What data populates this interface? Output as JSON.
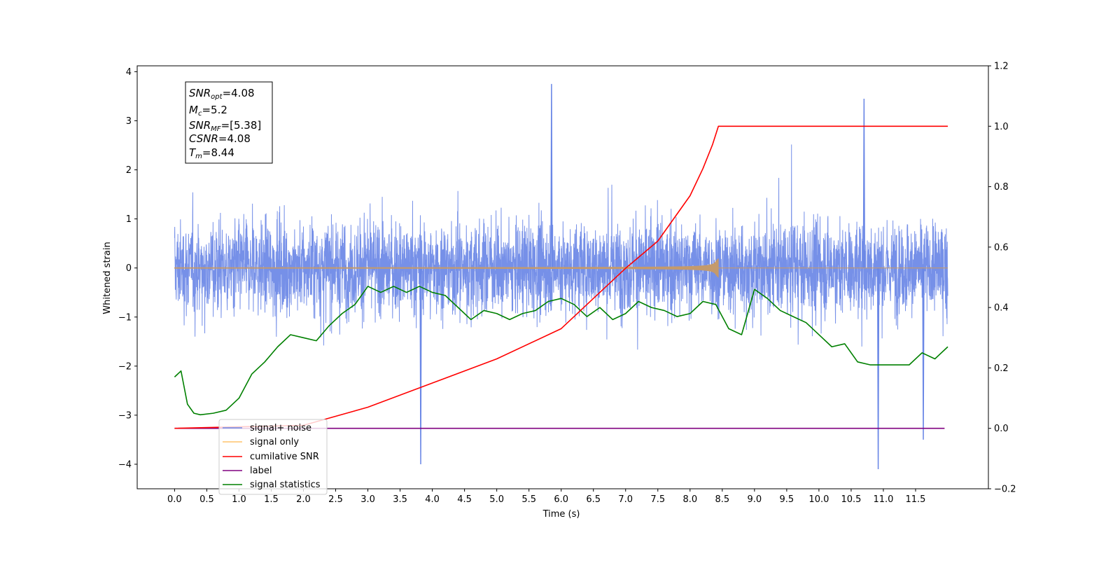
{
  "chart_data": {
    "type": "line",
    "xlabel": "Time (s)",
    "ylabel": "Whitened strain",
    "xlim": [
      -0.58,
      12.63
    ],
    "ylim": [
      -4.5,
      4.12
    ],
    "y2lim": [
      -0.2,
      1.2
    ],
    "x_ticks": [
      "0.0",
      "0.5",
      "1.0",
      "1.5",
      "2.0",
      "2.5",
      "3.0",
      "3.5",
      "4.0",
      "4.5",
      "5.0",
      "5.5",
      "6.0",
      "6.5",
      "7.0",
      "7.5",
      "8.0",
      "8.5",
      "9.0",
      "9.5",
      "10.0",
      "10.5",
      "11.0",
      "11.5"
    ],
    "y_ticks": [
      "4",
      "3",
      "2",
      "1",
      "0",
      "−1",
      "−2",
      "−3",
      "−4"
    ],
    "y2_ticks": [
      "1.2",
      "1.0",
      "0.8",
      "0.6",
      "0.4",
      "0.2",
      "0.0",
      "−0.2"
    ],
    "legend_position": "lower left",
    "annotation": {
      "line1": {
        "main": "SNR",
        "sub": "opt",
        "rest": "=4.08"
      },
      "line2": {
        "main": "M",
        "sub": "c",
        "rest": "=5.2"
      },
      "line3": {
        "main": "SNR",
        "sub": "MF",
        "rest": "=[5.38]"
      },
      "line4": {
        "main": "CSNR",
        "sub": "",
        "rest": "=4.08"
      },
      "line5": {
        "main": "T",
        "sub": "m",
        "rest": "=8.44"
      }
    },
    "series": [
      {
        "name": "signal+ noise",
        "color": "#6a87e6",
        "axis": "left",
        "x_range": [
          0.0,
          12.0
        ],
        "envelope_typical": [
          -1.5,
          1.5
        ],
        "notable_spikes": [
          {
            "x": 5.85,
            "y": 3.75
          },
          {
            "x": 3.82,
            "y": -4.0
          },
          {
            "x": 10.92,
            "y": -4.1
          },
          {
            "x": 10.7,
            "y": 3.45
          },
          {
            "x": 11.62,
            "y": -3.5
          }
        ]
      },
      {
        "name": "signal only",
        "color": "#c49a6c",
        "axis": "left",
        "merger_time": 8.44,
        "peak_amplitude": 0.45
      },
      {
        "name": "cumilative SNR",
        "color": "#ff0000",
        "axis": "right",
        "x": [
          0.0,
          2.0,
          3.0,
          4.0,
          5.0,
          6.0,
          7.0,
          7.5,
          8.0,
          8.2,
          8.35,
          8.44,
          12.0
        ],
        "y": [
          0.0,
          0.01,
          0.07,
          0.15,
          0.23,
          0.33,
          0.53,
          0.62,
          0.77,
          0.86,
          0.94,
          1.0,
          1.0
        ]
      },
      {
        "name": "label",
        "color": "#800080",
        "axis": "right",
        "x": [
          0.0,
          11.95
        ],
        "y": [
          0.0,
          0.0
        ]
      },
      {
        "name": "signal statistics",
        "color": "#008000",
        "axis": "right",
        "x": [
          0.0,
          0.1,
          0.2,
          0.3,
          0.4,
          0.6,
          0.8,
          1.0,
          1.2,
          1.4,
          1.6,
          1.8,
          2.0,
          2.2,
          2.4,
          2.6,
          2.8,
          3.0,
          3.2,
          3.4,
          3.6,
          3.8,
          4.0,
          4.2,
          4.4,
          4.6,
          4.8,
          5.0,
          5.2,
          5.4,
          5.6,
          5.8,
          6.0,
          6.2,
          6.4,
          6.6,
          6.8,
          7.0,
          7.2,
          7.4,
          7.6,
          7.8,
          8.0,
          8.2,
          8.4,
          8.6,
          8.8,
          9.0,
          9.2,
          9.4,
          9.6,
          9.8,
          10.0,
          10.2,
          10.4,
          10.6,
          10.8,
          11.0,
          11.2,
          11.4,
          11.6,
          11.8,
          12.0
        ],
        "y": [
          0.17,
          0.19,
          0.08,
          0.05,
          0.045,
          0.05,
          0.06,
          0.1,
          0.18,
          0.22,
          0.27,
          0.31,
          0.3,
          0.29,
          0.34,
          0.38,
          0.41,
          0.47,
          0.45,
          0.47,
          0.45,
          0.47,
          0.45,
          0.44,
          0.4,
          0.36,
          0.39,
          0.38,
          0.36,
          0.38,
          0.39,
          0.42,
          0.43,
          0.41,
          0.37,
          0.4,
          0.36,
          0.38,
          0.42,
          0.4,
          0.39,
          0.37,
          0.38,
          0.42,
          0.41,
          0.33,
          0.31,
          0.46,
          0.43,
          0.39,
          0.37,
          0.35,
          0.31,
          0.27,
          0.28,
          0.22,
          0.21,
          0.21,
          0.21,
          0.21,
          0.25,
          0.23,
          0.27
        ]
      }
    ]
  }
}
